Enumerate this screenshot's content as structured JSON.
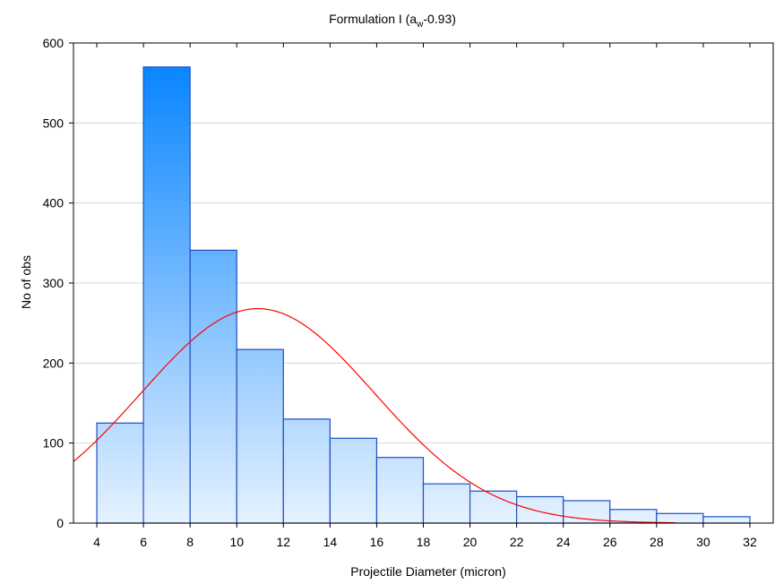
{
  "chart_data": {
    "type": "bar",
    "title": "Formulation I (a",
    "title_sub": "w",
    "title_suffix": "-0.93)",
    "xlabel": "Projectile Diameter (micron)",
    "ylabel": "No of obs",
    "xlim": [
      3,
      33
    ],
    "ylim": [
      0,
      600
    ],
    "x_ticks": [
      4,
      6,
      8,
      10,
      12,
      14,
      16,
      18,
      20,
      22,
      24,
      26,
      28,
      30,
      32
    ],
    "y_ticks": [
      0,
      100,
      200,
      300,
      400,
      500,
      600
    ],
    "grid": "horizontal",
    "bins": [
      {
        "from": 4,
        "to": 6,
        "value": 125
      },
      {
        "from": 6,
        "to": 8,
        "value": 570
      },
      {
        "from": 8,
        "to": 10,
        "value": 341
      },
      {
        "from": 10,
        "to": 12,
        "value": 217
      },
      {
        "from": 12,
        "to": 14,
        "value": 130
      },
      {
        "from": 14,
        "to": 16,
        "value": 106
      },
      {
        "from": 16,
        "to": 18,
        "value": 82
      },
      {
        "from": 18,
        "to": 20,
        "value": 49
      },
      {
        "from": 20,
        "to": 22,
        "value": 40
      },
      {
        "from": 22,
        "to": 24,
        "value": 33
      },
      {
        "from": 24,
        "to": 26,
        "value": 28
      },
      {
        "from": 26,
        "to": 28,
        "value": 17
      },
      {
        "from": 28,
        "to": 30,
        "value": 12
      },
      {
        "from": 30,
        "to": 32,
        "value": 8
      }
    ],
    "fit_curve": {
      "type": "normal",
      "mean": 10.9,
      "peak": 268,
      "sigma": 5.0,
      "x_range": [
        3,
        28.8
      ]
    },
    "colors": {
      "bar_top": "#0a85ff",
      "bar_bottom": "#e6f2ff",
      "bar_edge": "#1f4fbf",
      "curve": "#ff0000",
      "grid": "#d4d4d4",
      "axis": "#000000"
    }
  }
}
